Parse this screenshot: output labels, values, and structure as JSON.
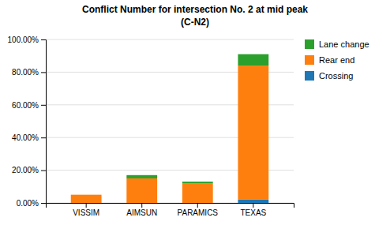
{
  "chart_data": {
    "type": "bar",
    "stacked": true,
    "title": "Conflict Number for intersection No. 2 at mid peak",
    "subtitle": "(C-N2)",
    "categories": [
      "VISSIM",
      "AIMSUN",
      "PARAMICS",
      "TEXAS"
    ],
    "series": [
      {
        "name": "Crossing",
        "values": [
          0.0,
          0.0,
          0.0,
          0.02
        ]
      },
      {
        "name": "Rear end",
        "values": [
          0.05,
          0.15,
          0.12,
          0.82
        ]
      },
      {
        "name": "Lane change",
        "values": [
          0.0,
          0.02,
          0.01,
          0.07
        ]
      }
    ],
    "ylim": [
      0,
      1.0
    ],
    "yticks": [
      {
        "value": 0.0,
        "label": "0.00%"
      },
      {
        "value": 0.2,
        "label": "20.00%"
      },
      {
        "value": 0.4,
        "label": "40.00%"
      },
      {
        "value": 0.6,
        "label": "60.00%"
      },
      {
        "value": 0.8,
        "label": "80.00%"
      },
      {
        "value": 1.0,
        "label": "100.00%"
      }
    ],
    "grid": true,
    "legend": "right"
  }
}
